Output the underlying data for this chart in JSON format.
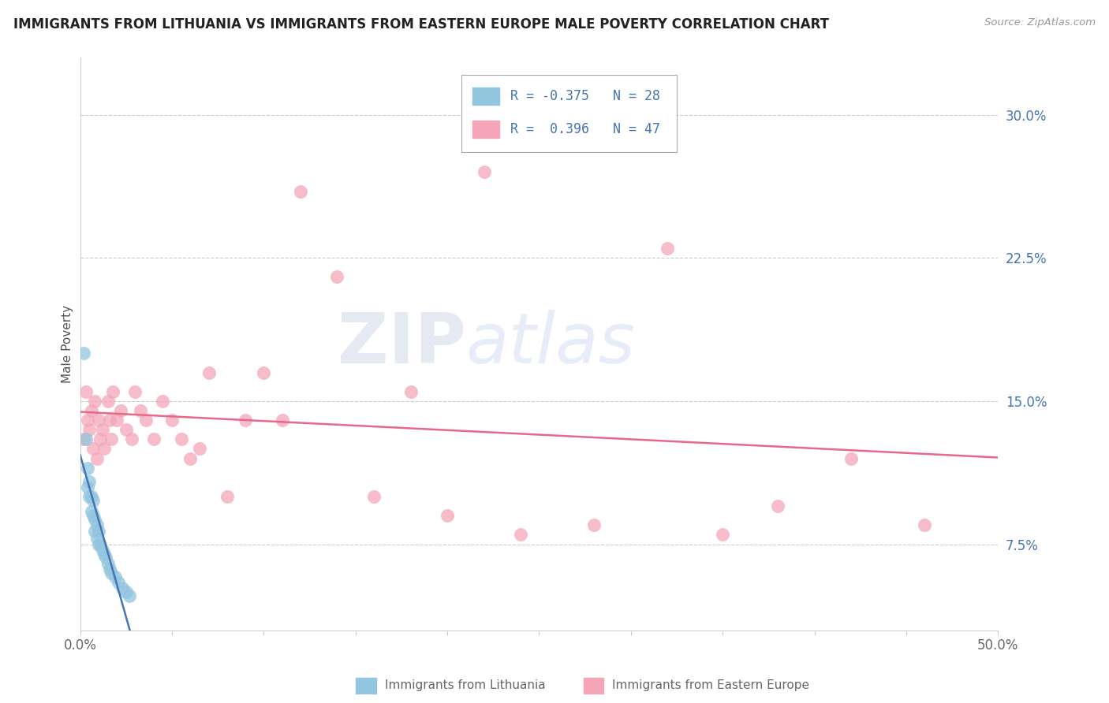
{
  "title": "IMMIGRANTS FROM LITHUANIA VS IMMIGRANTS FROM EASTERN EUROPE MALE POVERTY CORRELATION CHART",
  "source": "Source: ZipAtlas.com",
  "ylabel": "Male Poverty",
  "y_tick_labels": [
    "7.5%",
    "15.0%",
    "22.5%",
    "30.0%"
  ],
  "y_tick_values": [
    0.075,
    0.15,
    0.225,
    0.3
  ],
  "xmin": 0.0,
  "xmax": 0.5,
  "ymin": 0.03,
  "ymax": 0.33,
  "color_lithuania": "#92C5DE",
  "color_eastern": "#F4A6B8",
  "color_line_lithuania": "#4575B4",
  "color_line_eastern": "#E8688A",
  "color_legend_text": "#4575B4",
  "watermark_zip": "ZIP",
  "watermark_atlas": "atlas",
  "lithuania_x": [
    0.002,
    0.003,
    0.004,
    0.004,
    0.005,
    0.005,
    0.006,
    0.006,
    0.007,
    0.007,
    0.008,
    0.008,
    0.009,
    0.009,
    0.01,
    0.01,
    0.011,
    0.012,
    0.013,
    0.014,
    0.015,
    0.016,
    0.017,
    0.019,
    0.021,
    0.023,
    0.025,
    0.027
  ],
  "lithuania_y": [
    0.175,
    0.13,
    0.115,
    0.105,
    0.108,
    0.1,
    0.1,
    0.092,
    0.098,
    0.09,
    0.088,
    0.082,
    0.085,
    0.078,
    0.082,
    0.075,
    0.075,
    0.072,
    0.07,
    0.068,
    0.065,
    0.062,
    0.06,
    0.058,
    0.055,
    0.052,
    0.05,
    0.048
  ],
  "eastern_x": [
    0.002,
    0.003,
    0.004,
    0.005,
    0.006,
    0.007,
    0.008,
    0.009,
    0.01,
    0.011,
    0.012,
    0.013,
    0.015,
    0.016,
    0.017,
    0.018,
    0.02,
    0.022,
    0.025,
    0.028,
    0.03,
    0.033,
    0.036,
    0.04,
    0.045,
    0.05,
    0.055,
    0.06,
    0.065,
    0.07,
    0.08,
    0.09,
    0.1,
    0.11,
    0.12,
    0.14,
    0.16,
    0.18,
    0.2,
    0.22,
    0.24,
    0.28,
    0.32,
    0.35,
    0.38,
    0.42,
    0.46
  ],
  "eastern_y": [
    0.13,
    0.155,
    0.14,
    0.135,
    0.145,
    0.125,
    0.15,
    0.12,
    0.14,
    0.13,
    0.135,
    0.125,
    0.15,
    0.14,
    0.13,
    0.155,
    0.14,
    0.145,
    0.135,
    0.13,
    0.155,
    0.145,
    0.14,
    0.13,
    0.15,
    0.14,
    0.13,
    0.12,
    0.125,
    0.165,
    0.1,
    0.14,
    0.165,
    0.14,
    0.26,
    0.215,
    0.1,
    0.155,
    0.09,
    0.27,
    0.08,
    0.085,
    0.23,
    0.08,
    0.095,
    0.12,
    0.085
  ]
}
